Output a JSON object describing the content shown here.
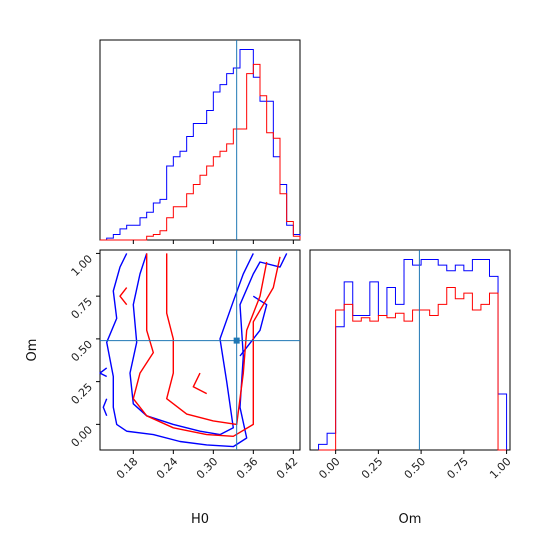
{
  "chart_data": [
    {
      "type": "histogram",
      "variable": "H0",
      "xlim": [
        0.13,
        0.43
      ],
      "truth_x": 0.335,
      "bin_edges": [
        0.13,
        0.14,
        0.15,
        0.16,
        0.17,
        0.18,
        0.19,
        0.2,
        0.21,
        0.22,
        0.23,
        0.24,
        0.25,
        0.26,
        0.27,
        0.28,
        0.29,
        0.3,
        0.31,
        0.32,
        0.33,
        0.34,
        0.35,
        0.36,
        0.37,
        0.38,
        0.39,
        0.4,
        0.41,
        0.42,
        0.43
      ],
      "series": [
        {
          "color": "#0000ff",
          "values": [
            0,
            1,
            3,
            6,
            8,
            8,
            12,
            15,
            20,
            22,
            40,
            45,
            48,
            56,
            63,
            63,
            70,
            80,
            84,
            90,
            93,
            103,
            103,
            88,
            75,
            75,
            45,
            30,
            8,
            3
          ]
        },
        {
          "color": "#ff0000",
          "values": [
            0,
            0,
            0,
            0,
            0,
            0,
            0,
            2,
            3,
            5,
            12,
            18,
            18,
            25,
            30,
            35,
            40,
            45,
            48,
            52,
            60,
            60,
            90,
            95,
            78,
            58,
            55,
            25,
            10,
            2
          ]
        }
      ]
    },
    {
      "type": "contour",
      "xvariable": "H0",
      "yvariable": "Om",
      "xlim": [
        0.13,
        0.43
      ],
      "ylim": [
        -0.15,
        1.02
      ],
      "xticks": [
        "0.18",
        "0.24",
        "0.30",
        "0.36",
        "0.42"
      ],
      "yticks": [
        "0.00",
        "0.25",
        "0.50",
        "0.75",
        "1.00"
      ],
      "xlabel": "H0",
      "ylabel": "Om",
      "truth": [
        0.335,
        0.49
      ],
      "series": [
        {
          "color": "#0000ff",
          "contours": [
            [
              [
                0.17,
                1.0
              ],
              [
                0.16,
                0.92
              ],
              [
                0.15,
                0.78
              ],
              [
                0.155,
                0.62
              ],
              [
                0.14,
                0.48
              ],
              [
                0.15,
                0.28
              ],
              [
                0.15,
                0.1
              ],
              [
                0.155,
                0.0
              ],
              [
                0.17,
                -0.04
              ],
              [
                0.21,
                -0.06
              ],
              [
                0.25,
                -0.1
              ],
              [
                0.29,
                -0.12
              ],
              [
                0.33,
                -0.13
              ],
              [
                0.35,
                -0.08
              ],
              [
                0.34,
                0.1
              ],
              [
                0.345,
                0.4
              ],
              [
                0.34,
                0.7
              ],
              [
                0.36,
                0.88
              ],
              [
                0.37,
                0.95
              ],
              [
                0.4,
                0.92
              ],
              [
                0.41,
                1.0
              ]
            ],
            [
              [
                0.2,
                1.0
              ],
              [
                0.19,
                0.88
              ],
              [
                0.18,
                0.7
              ],
              [
                0.185,
                0.48
              ],
              [
                0.175,
                0.3
              ],
              [
                0.18,
                0.12
              ],
              [
                0.2,
                0.05
              ],
              [
                0.24,
                0.0
              ],
              [
                0.28,
                -0.04
              ],
              [
                0.31,
                -0.06
              ],
              [
                0.33,
                -0.02
              ],
              [
                0.32,
                0.25
              ],
              [
                0.31,
                0.5
              ],
              [
                0.33,
                0.72
              ],
              [
                0.345,
                0.88
              ],
              [
                0.36,
                1.0
              ]
            ],
            [
              [
                0.14,
                0.28
              ],
              [
                0.13,
                0.3
              ],
              [
                0.14,
                0.33
              ]
            ],
            [
              [
                0.14,
                0.15
              ],
              [
                0.135,
                0.1
              ],
              [
                0.14,
                0.05
              ]
            ],
            [
              [
                0.36,
                0.75
              ],
              [
                0.38,
                0.7
              ],
              [
                0.37,
                0.55
              ],
              [
                0.35,
                0.45
              ],
              [
                0.34,
                0.4
              ]
            ]
          ]
        },
        {
          "color": "#ff0000",
          "contours": [
            [
              [
                0.2,
                1.0
              ],
              [
                0.2,
                0.85
              ],
              [
                0.2,
                0.7
              ],
              [
                0.2,
                0.55
              ],
              [
                0.21,
                0.42
              ],
              [
                0.19,
                0.3
              ],
              [
                0.18,
                0.15
              ],
              [
                0.2,
                0.05
              ],
              [
                0.24,
                -0.02
              ],
              [
                0.29,
                -0.06
              ],
              [
                0.33,
                -0.07
              ],
              [
                0.36,
                0.0
              ],
              [
                0.36,
                0.3
              ],
              [
                0.36,
                0.6
              ],
              [
                0.39,
                0.8
              ],
              [
                0.4,
                0.98
              ]
            ],
            [
              [
                0.23,
                1.0
              ],
              [
                0.23,
                0.8
              ],
              [
                0.23,
                0.65
              ],
              [
                0.24,
                0.5
              ],
              [
                0.24,
                0.3
              ],
              [
                0.23,
                0.15
              ],
              [
                0.26,
                0.06
              ],
              [
                0.3,
                0.02
              ],
              [
                0.335,
                0.0
              ],
              [
                0.345,
                0.3
              ],
              [
                0.35,
                0.55
              ],
              [
                0.37,
                0.75
              ],
              [
                0.38,
                0.95
              ]
            ],
            [
              [
                0.17,
                0.8
              ],
              [
                0.16,
                0.75
              ],
              [
                0.17,
                0.7
              ]
            ],
            [
              [
                0.28,
                0.3
              ],
              [
                0.27,
                0.22
              ],
              [
                0.29,
                0.18
              ]
            ]
          ]
        }
      ]
    },
    {
      "type": "histogram",
      "variable": "Om",
      "xlim": [
        -0.15,
        1.02
      ],
      "xticks": [
        "0.00",
        "0.25",
        "0.50",
        "0.75",
        "1.00"
      ],
      "xlabel": "Om",
      "truth_x": 0.49,
      "bin_edges": [
        -0.1,
        -0.05,
        0.0,
        0.05,
        0.1,
        0.15,
        0.2,
        0.25,
        0.3,
        0.35,
        0.4,
        0.45,
        0.5,
        0.55,
        0.6,
        0.65,
        0.7,
        0.75,
        0.8,
        0.85,
        0.9,
        0.95,
        1.0
      ],
      "series": [
        {
          "color": "#0000ff",
          "values": [
            5,
            15,
            110,
            150,
            120,
            120,
            150,
            120,
            145,
            130,
            170,
            165,
            170,
            170,
            165,
            160,
            165,
            160,
            170,
            170,
            155,
            50
          ]
        },
        {
          "color": "#ff0000",
          "values": [
            0,
            0,
            125,
            130,
            115,
            118,
            115,
            120,
            118,
            122,
            115,
            125,
            125,
            120,
            130,
            145,
            135,
            140,
            125,
            130,
            140,
            0
          ]
        }
      ]
    }
  ]
}
